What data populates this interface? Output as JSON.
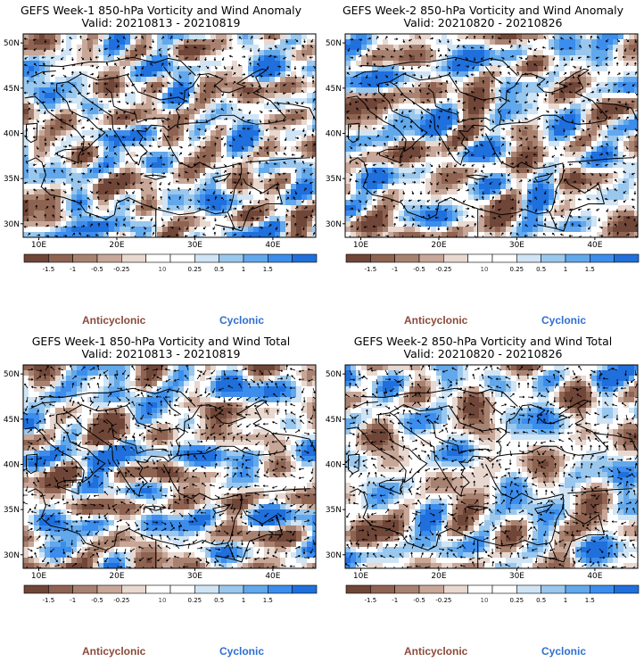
{
  "panels": [
    {
      "title": "GEFS Week-1 850-hPa Vorticity and Wind Anomaly",
      "valid": "Valid: 20210813 - 20210819",
      "seed": 11
    },
    {
      "title": "GEFS Week-2 850-hPa Vorticity and Wind Anomaly",
      "valid": "Valid: 20210820 - 20210826",
      "seed": 23
    },
    {
      "title": "GEFS Week-1 850-hPa Vorticity and Wind Total",
      "valid": "Valid: 20210813 - 20210819",
      "seed": 37
    },
    {
      "title": "GEFS Week-2 850-hPa Vorticity and Wind Total",
      "valid": "Valid: 20210820 - 20210826",
      "seed": 53
    }
  ],
  "lat_labels": [
    "50N",
    "45N",
    "40N",
    "35N",
    "30N"
  ],
  "lon_labels": [
    "10E",
    "20E",
    "30E",
    "40E"
  ],
  "colorbar": {
    "ticks": [
      "-1.5",
      "-1",
      "-0.5",
      "-0.25",
      "0.25",
      "0.5",
      "1",
      "1.5"
    ],
    "unit_label": "10",
    "colors": [
      "#6f4638",
      "#8e6351",
      "#a88270",
      "#c8a798",
      "#e8d8cf",
      "#ffffff",
      "#ffffff",
      "#cfe4f5",
      "#9ac7ed",
      "#62a8ec",
      "#3c8ded",
      "#1f6fdc"
    ]
  },
  "legend": {
    "anticyclonic": "Anticyclonic",
    "cyclonic": "Cyclonic"
  },
  "colors": {
    "anticyclonic": "#8b4a3a",
    "cyclonic": "#2f6fd0"
  }
}
